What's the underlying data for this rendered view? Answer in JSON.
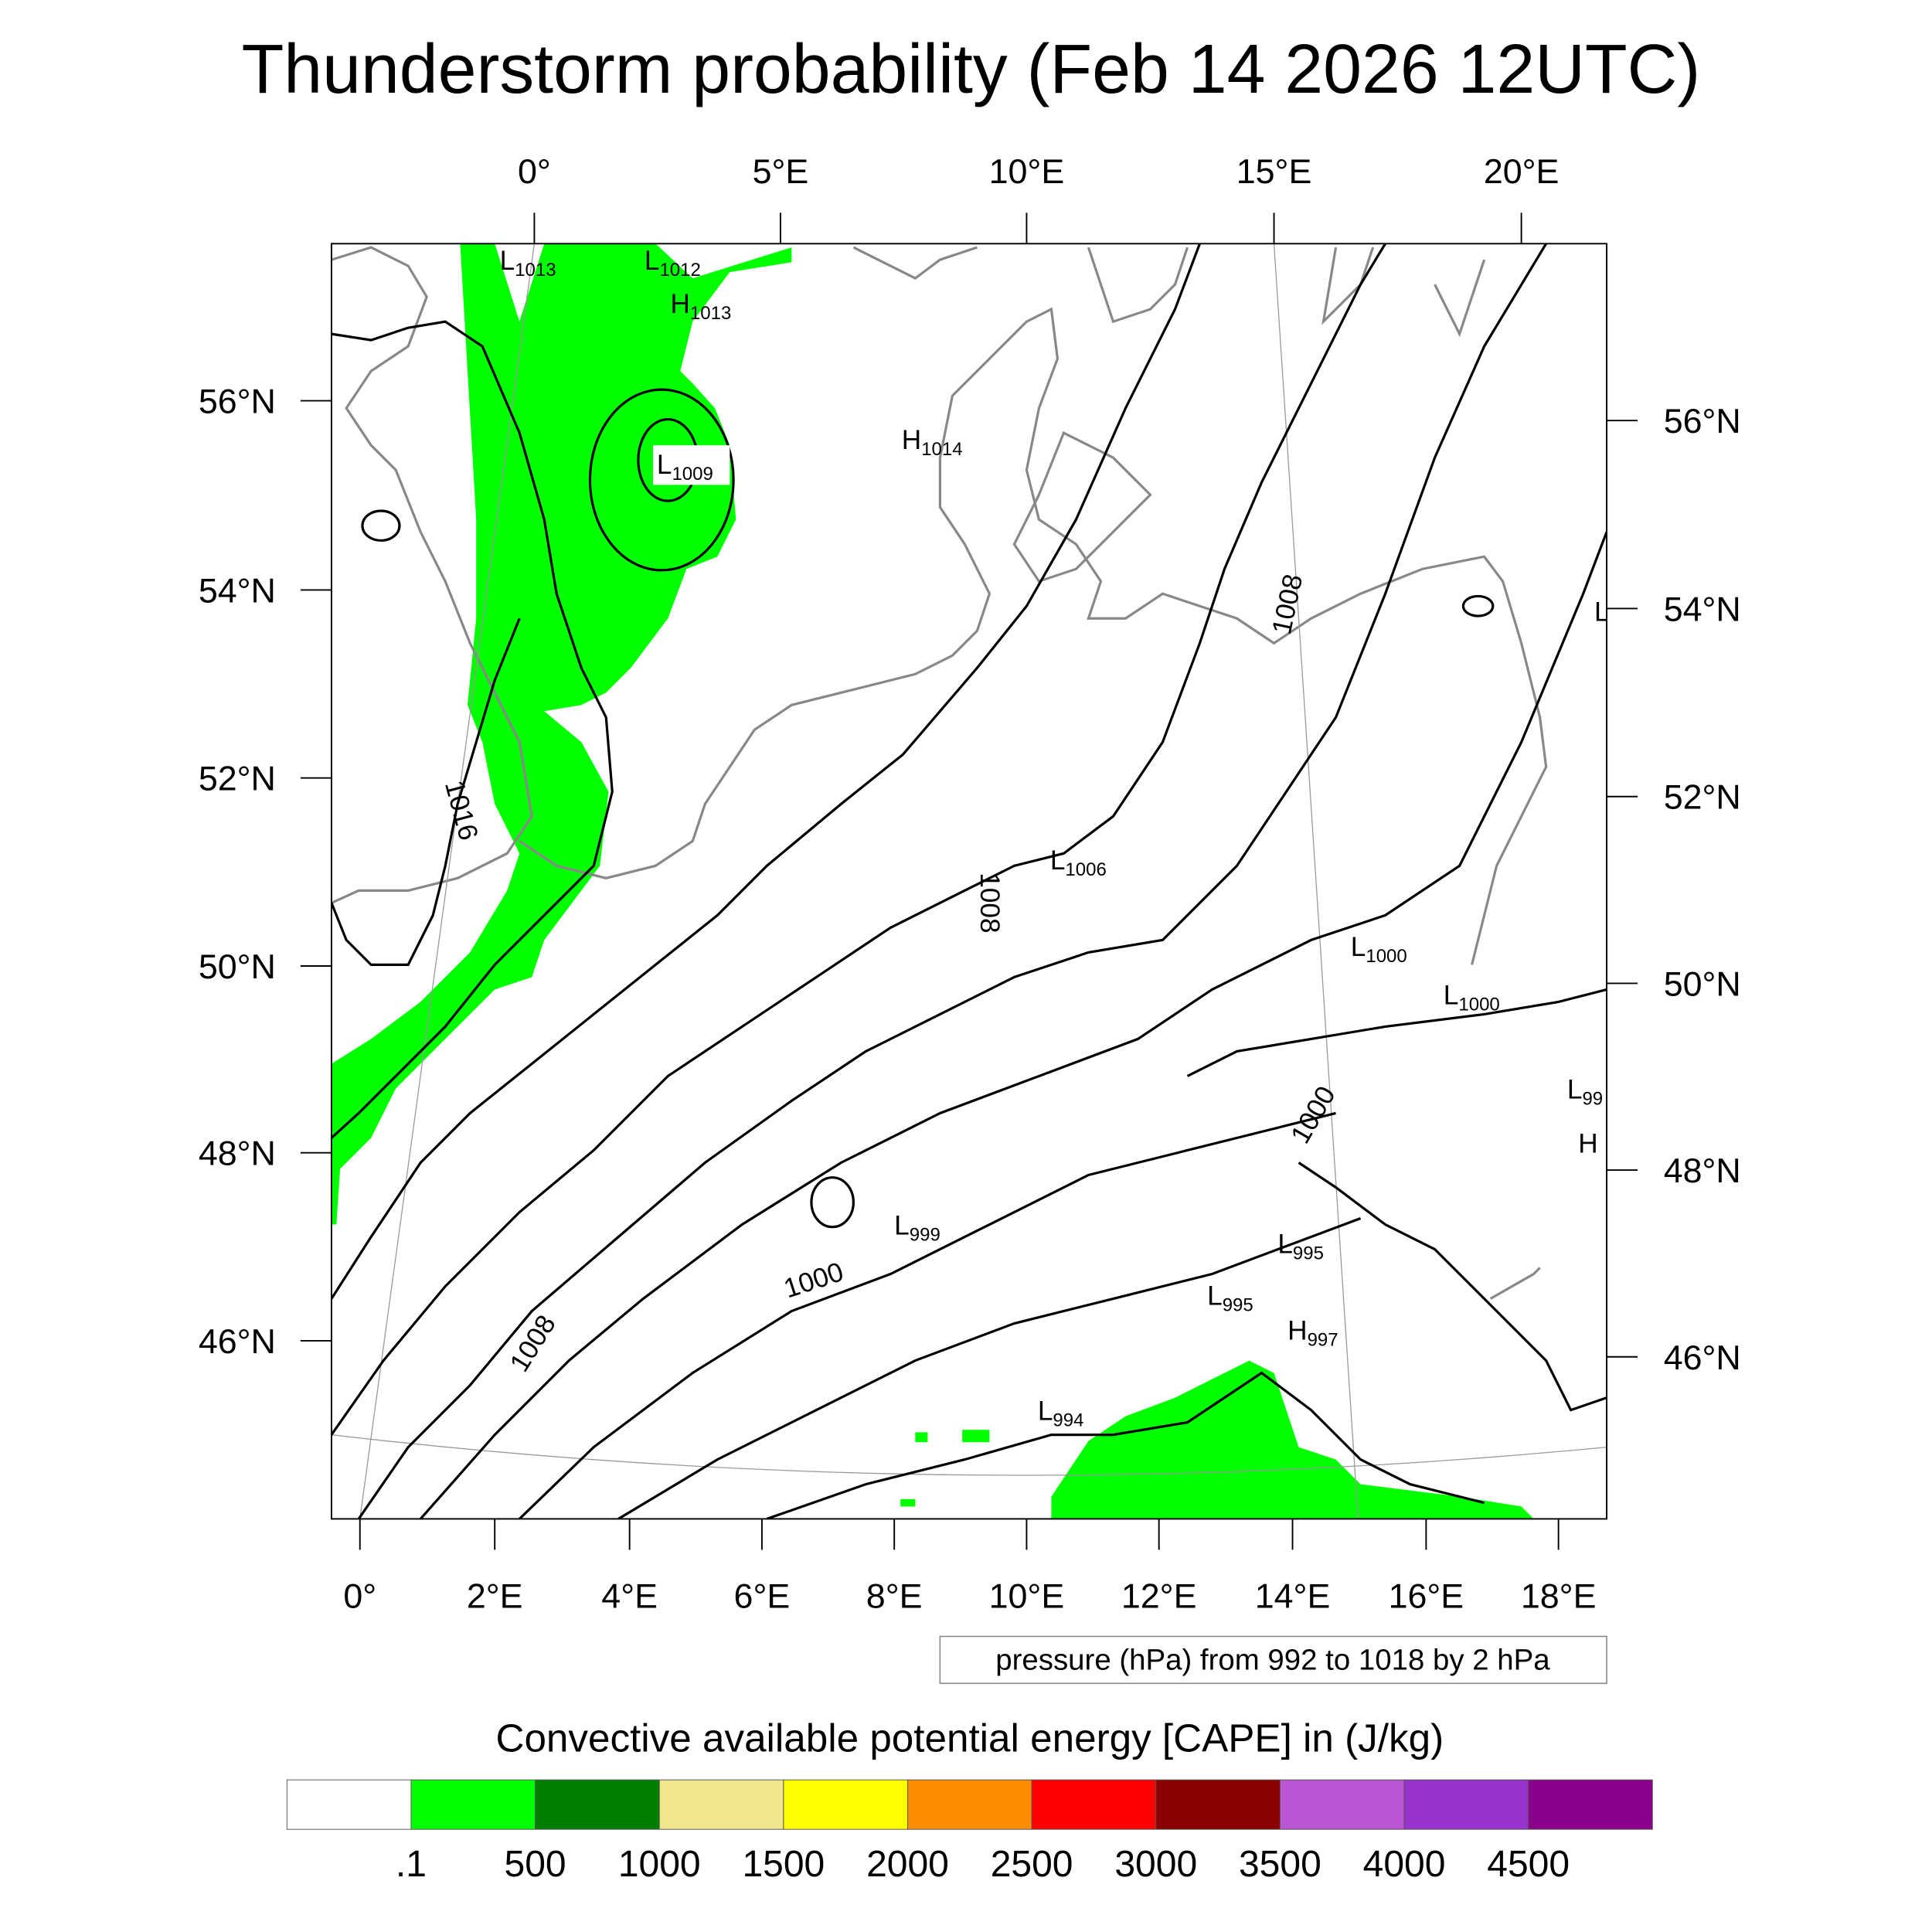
{
  "chart_data": {
    "type": "heatmap",
    "title": "Thunderstorm probability (Feb 14 2026 12UTC)",
    "top_lon_ticks": [
      "0°",
      "5°E",
      "10°E",
      "15°E",
      "20°E"
    ],
    "bottom_lon_ticks": [
      "0°",
      "2°E",
      "4°E",
      "6°E",
      "8°E",
      "10°E",
      "12°E",
      "14°E",
      "16°E",
      "18°E"
    ],
    "left_lat_ticks": [
      "56°N",
      "54°N",
      "52°N",
      "50°N",
      "48°N",
      "46°N"
    ],
    "right_lat_ticks": [
      "56°N",
      "54°N",
      "52°N",
      "50°N",
      "48°N",
      "46°N"
    ],
    "pressure_centers": [
      {
        "type": "L",
        "value": "1013"
      },
      {
        "type": "L",
        "value": "1012"
      },
      {
        "type": "H",
        "value": "1013"
      },
      {
        "type": "L",
        "value": "1009"
      },
      {
        "type": "H",
        "value": "1014"
      },
      {
        "type": "L",
        "value": "1006"
      },
      {
        "type": "L",
        "value": "1000"
      },
      {
        "type": "L",
        "value": "1000"
      },
      {
        "type": "L",
        "value": "99"
      },
      {
        "type": "H",
        "value": ""
      },
      {
        "type": "L",
        "value": "999"
      },
      {
        "type": "L",
        "value": "995"
      },
      {
        "type": "L",
        "value": "995"
      },
      {
        "type": "H",
        "value": "997"
      },
      {
        "type": "L",
        "value": "994"
      },
      {
        "type": "L",
        "value": ""
      }
    ],
    "contour_labels": [
      "1016",
      "1008",
      "1008",
      "1000",
      "1000",
      "1008"
    ],
    "contour_info": "pressure (hPa) from 992 to 1018 by 2 hPa",
    "colorbar": {
      "title": "Convective available potential energy [CAPE] in (J/kg)",
      "colors": [
        "#ffffff",
        "#00ff00",
        "#008000",
        "#f0e68c",
        "#ffff00",
        "#ff8c00",
        "#ff0000",
        "#8b0000",
        "#ba55d3",
        "#9932cc",
        "#8b008b"
      ],
      "labels": [
        ".1",
        "500",
        "1000",
        "1500",
        "2000",
        "2500",
        "3000",
        "3500",
        "4000",
        "4500"
      ]
    }
  }
}
